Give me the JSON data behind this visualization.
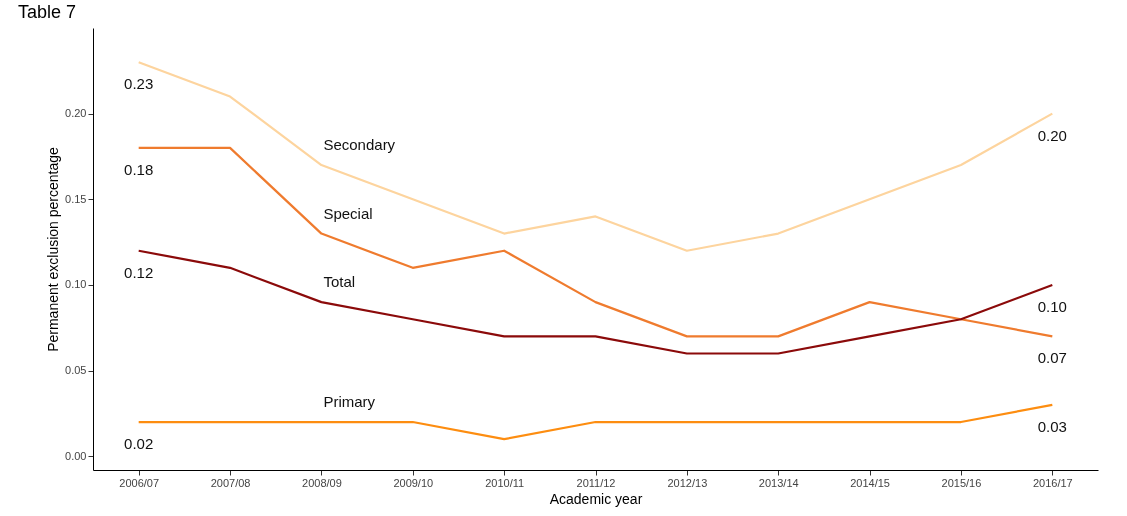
{
  "chart_data": {
    "type": "line",
    "title": "Table 7",
    "xlabel": "Academic year",
    "ylabel": "Permanent exclusion percentage",
    "categories": [
      "2006/07",
      "2007/08",
      "2008/09",
      "2009/10",
      "2010/11",
      "2011/12",
      "2012/13",
      "2013/14",
      "2014/15",
      "2015/16",
      "2016/17"
    ],
    "series": [
      {
        "name": "Secondary",
        "color": "#fdd49e",
        "values": [
          0.23,
          0.21,
          0.17,
          0.15,
          0.13,
          0.14,
          0.12,
          0.13,
          0.15,
          0.17,
          0.2
        ],
        "value_labels": [
          "0.23",
          null,
          null,
          null,
          null,
          null,
          null,
          null,
          null,
          null,
          "0.20"
        ]
      },
      {
        "name": "Special",
        "color": "#ef7b2e",
        "values": [
          0.18,
          0.18,
          0.13,
          0.11,
          0.12,
          0.09,
          0.07,
          0.07,
          0.09,
          0.08,
          0.07
        ],
        "value_labels": [
          "0.18",
          null,
          null,
          null,
          null,
          null,
          null,
          null,
          null,
          null,
          "0.07"
        ]
      },
      {
        "name": "Total",
        "color": "#8b0a0a",
        "values": [
          0.12,
          0.11,
          0.09,
          0.08,
          0.07,
          0.07,
          0.06,
          0.06,
          0.07,
          0.08,
          0.1
        ],
        "value_labels": [
          "0.12",
          null,
          null,
          null,
          null,
          null,
          null,
          null,
          null,
          null,
          "0.10"
        ]
      },
      {
        "name": "Primary",
        "color": "#fd8d10",
        "values": [
          0.02,
          0.02,
          0.02,
          0.02,
          0.01,
          0.02,
          0.02,
          0.02,
          0.02,
          0.02,
          0.03
        ],
        "value_labels": [
          "0.02",
          null,
          null,
          null,
          null,
          null,
          null,
          null,
          null,
          null,
          "0.03"
        ]
      }
    ],
    "ylim": [
      -0.008,
      0.25
    ],
    "yticks": [
      {
        "value": 0,
        "label": "0.00"
      },
      {
        "value": 0.05,
        "label": "0.05"
      },
      {
        "value": 0.1,
        "label": "0.10"
      },
      {
        "value": 0.15,
        "label": "0.15"
      },
      {
        "value": 0.2,
        "label": "0.20"
      }
    ],
    "grid": false,
    "legend": false,
    "marker": "none",
    "line_style": "solid"
  }
}
